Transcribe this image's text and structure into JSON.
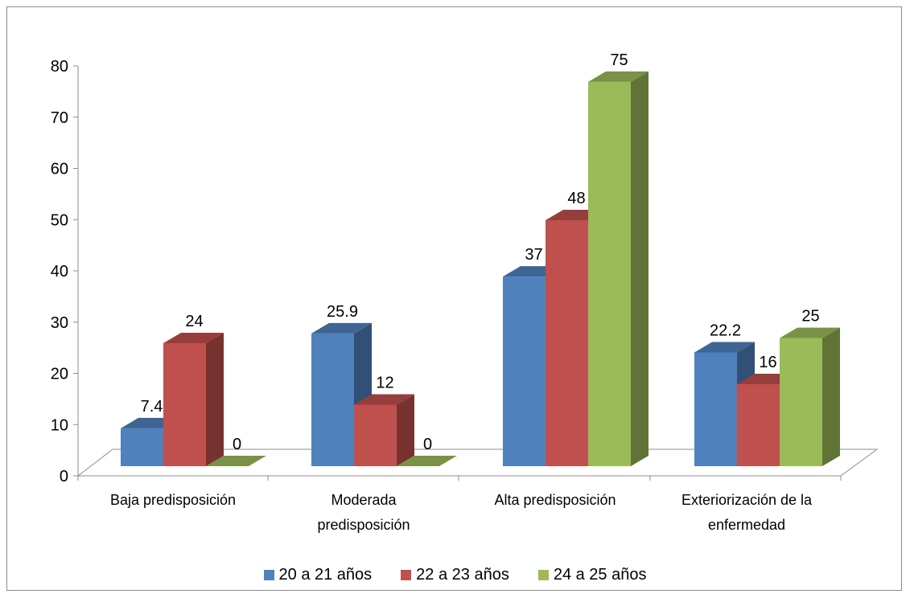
{
  "chart_data": {
    "type": "bar",
    "title": "",
    "xlabel": "",
    "ylabel": "",
    "categories": [
      [
        "Baja predisposición"
      ],
      [
        "Moderada",
        "predisposición"
      ],
      [
        "Alta predisposición"
      ],
      [
        "Exteriorización de la",
        "enfermedad"
      ]
    ],
    "series": [
      {
        "name": "20 a 21 años",
        "color": "#4f81bd",
        "values": [
          7.4,
          25.9,
          37,
          22.2
        ]
      },
      {
        "name": "22 a 23 años",
        "color": "#c0504d",
        "values": [
          24,
          12,
          48,
          16
        ]
      },
      {
        "name": "24 a 25 años",
        "color": "#9bbb59",
        "values": [
          0,
          0,
          75,
          25
        ]
      }
    ],
    "ylim": [
      0,
      80
    ],
    "yticks": [
      0,
      10,
      20,
      30,
      40,
      50,
      60,
      70,
      80
    ],
    "grid": false,
    "legend": "bottom",
    "style": "3d-clustered-column"
  }
}
